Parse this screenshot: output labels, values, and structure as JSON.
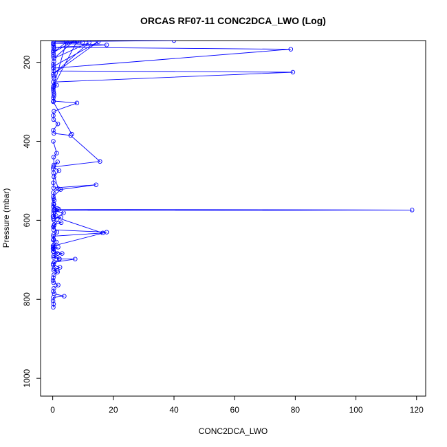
{
  "chart_data": {
    "type": "line",
    "title": "ORCAS RF07-11 CONC2DCA_LWO (Log)",
    "xlabel": "CONC2DCA_LWO",
    "ylabel": "Pressure (mbar)",
    "xlim": [
      -4,
      123
    ],
    "ylim": [
      1045,
      145
    ],
    "y_reversed": true,
    "x_ticks": [
      0,
      20,
      40,
      60,
      80,
      100,
      120
    ],
    "y_ticks": [
      200,
      400,
      600,
      800,
      1000
    ],
    "grid": false,
    "marker": "open-circle",
    "color": "#0000ff",
    "series": [
      {
        "values": [
          [
            0.2,
            820
          ],
          [
            0.3,
            812
          ],
          [
            0.1,
            804
          ],
          [
            0.2,
            795
          ],
          [
            3.8,
            792
          ],
          [
            0.5,
            786
          ],
          [
            0.2,
            780
          ],
          [
            0.4,
            772
          ],
          [
            1.8,
            764
          ],
          [
            0.3,
            758
          ],
          [
            0.1,
            752
          ],
          [
            0.2,
            745
          ],
          [
            0.4,
            738
          ],
          [
            1.6,
            731
          ],
          [
            0.3,
            726
          ],
          [
            2.4,
            719
          ],
          [
            0.2,
            713
          ],
          [
            0.5,
            706
          ],
          [
            7.4,
            698
          ],
          [
            2.2,
            698
          ],
          [
            0.3,
            694
          ],
          [
            3.1,
            684
          ],
          [
            0.2,
            679
          ],
          [
            0.4,
            672
          ],
          [
            0.1,
            665
          ],
          [
            17.8,
            630
          ],
          [
            0.3,
            624
          ],
          [
            0.2,
            617
          ],
          [
            0.5,
            611
          ],
          [
            2.8,
            606
          ],
          [
            0.4,
            600
          ],
          [
            3.6,
            581
          ],
          [
            0.3,
            576
          ],
          [
            118.5,
            574
          ],
          [
            0.4,
            572
          ],
          [
            1.5,
            570
          ],
          [
            0.2,
            565
          ],
          [
            0.3,
            558
          ],
          [
            0.5,
            550
          ],
          [
            0.2,
            540
          ],
          [
            2.6,
            522
          ],
          [
            14.3,
            510
          ],
          [
            0.3,
            518
          ],
          [
            0.2,
            505
          ],
          [
            0.4,
            490
          ],
          [
            2.1,
            474
          ],
          [
            0.2,
            465
          ],
          [
            15.6,
            451
          ],
          [
            5.9,
            385
          ],
          [
            0.4,
            380
          ],
          [
            0.2,
            372
          ],
          [
            1.7,
            356
          ],
          [
            0.3,
            345
          ],
          [
            0.2,
            335
          ],
          [
            0.4,
            324
          ],
          [
            8.0,
            303
          ],
          [
            0.3,
            298
          ],
          [
            0.2,
            290
          ],
          [
            0.4,
            280
          ],
          [
            0.2,
            270
          ],
          [
            0.3,
            262
          ],
          [
            1.3,
            258
          ],
          [
            0.2,
            250
          ],
          [
            79.2,
            225
          ],
          [
            0.4,
            222
          ],
          [
            0.2,
            215
          ],
          [
            78.5,
            167
          ],
          [
            0.3,
            162
          ],
          [
            17.8,
            156
          ],
          [
            0.2,
            152
          ],
          [
            9.8,
            150
          ],
          [
            0.3,
            148
          ],
          [
            40.0,
            145
          ]
        ]
      },
      {
        "values": [
          [
            0.3,
            210
          ],
          [
            15.0,
            148
          ],
          [
            0.2,
            230
          ],
          [
            12.0,
            150
          ],
          [
            0.4,
            190
          ],
          [
            7.0,
            146
          ],
          [
            0.2,
            175
          ],
          [
            4.5,
            149
          ],
          [
            0.3,
            260
          ],
          [
            8.0,
            147
          ]
        ]
      },
      {
        "values": [
          [
            0.2,
            400
          ],
          [
            1.3,
            430
          ],
          [
            0.3,
            440
          ],
          [
            0.4,
            460
          ],
          [
            1.6,
            452
          ],
          [
            0.2,
            470
          ],
          [
            0.3,
            480
          ],
          [
            1.8,
            520
          ],
          [
            0.2,
            530
          ],
          [
            0.3,
            545
          ],
          [
            0.4,
            560
          ],
          [
            0.1,
            590
          ],
          [
            16.5,
            632
          ],
          [
            0.2,
            640
          ],
          [
            0.3,
            648
          ],
          [
            1.2,
            655
          ],
          [
            0.2,
            668
          ],
          [
            0.4,
            680
          ],
          [
            1.6,
            684
          ],
          [
            0.3,
            690
          ],
          [
            2.2,
            697
          ],
          [
            0.2,
            710
          ],
          [
            0.4,
            722
          ],
          [
            1.5,
            727
          ]
        ]
      },
      {
        "values": [
          [
            6.3,
            382
          ],
          [
            0.2,
            300
          ],
          [
            0.4,
            285
          ],
          [
            0.3,
            275
          ],
          [
            0.2,
            265
          ],
          [
            0.4,
            240
          ],
          [
            0.3,
            235
          ],
          [
            0.2,
            205
          ],
          [
            0.4,
            198
          ],
          [
            0.2,
            185
          ],
          [
            0.3,
            180
          ],
          [
            0.2,
            170
          ],
          [
            0.4,
            165
          ],
          [
            0.3,
            158
          ],
          [
            0.2,
            154
          ]
        ]
      },
      {
        "values": [
          [
            0.2,
            590
          ],
          [
            2.0,
            572
          ],
          [
            0.3,
            582
          ],
          [
            1.1,
            588
          ],
          [
            0.2,
            596
          ],
          [
            2.7,
            592
          ],
          [
            0.4,
            614
          ],
          [
            1.4,
            630
          ],
          [
            0.3,
            636
          ],
          [
            0.2,
            650
          ],
          [
            0.4,
            662
          ],
          [
            0.1,
            672
          ],
          [
            1.8,
            668
          ]
        ]
      }
    ]
  }
}
